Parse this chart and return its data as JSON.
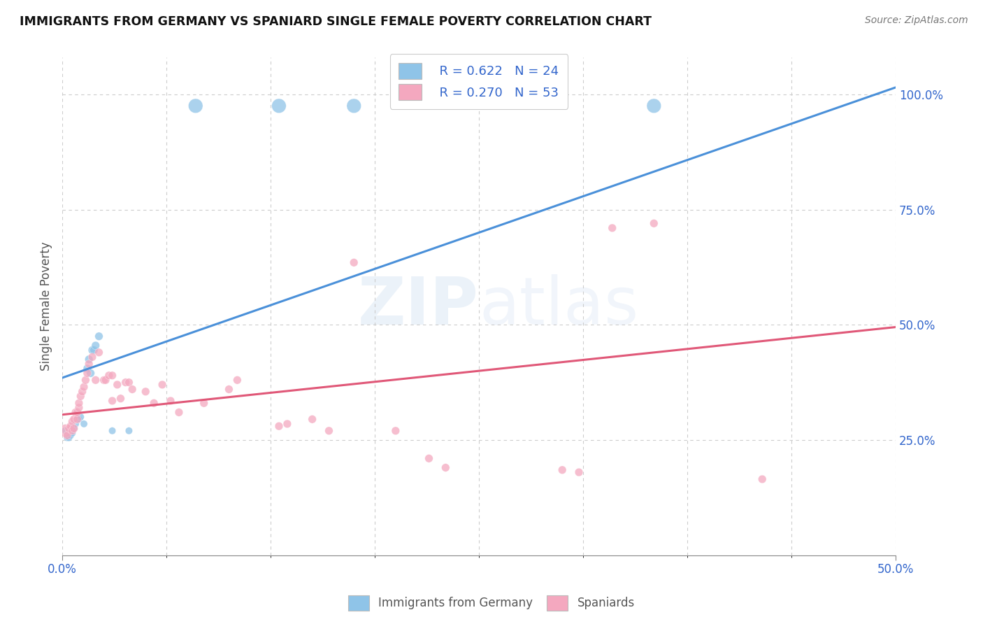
{
  "title": "IMMIGRANTS FROM GERMANY VS SPANIARD SINGLE FEMALE POVERTY CORRELATION CHART",
  "source": "Source: ZipAtlas.com",
  "ylabel": "Single Female Poverty",
  "xlim": [
    0.0,
    0.5
  ],
  "ylim": [
    0.0,
    1.08
  ],
  "ytick_labels": [
    "25.0%",
    "50.0%",
    "75.0%",
    "100.0%"
  ],
  "ytick_positions": [
    0.25,
    0.5,
    0.75,
    1.0
  ],
  "legend_r1": "R = 0.622",
  "legend_n1": "N = 24",
  "legend_r2": "R = 0.270",
  "legend_n2": "N = 53",
  "legend_label1": "Immigrants from Germany",
  "legend_label2": "Spaniards",
  "color_blue": "#8fc4e8",
  "color_pink": "#f4a8bf",
  "color_blue_line": "#4a90d9",
  "color_pink_line": "#e05878",
  "blue_line": [
    [
      0.0,
      0.385
    ],
    [
      0.5,
      1.015
    ]
  ],
  "pink_line": [
    [
      0.0,
      0.305
    ],
    [
      0.5,
      0.495
    ]
  ],
  "blue_points": [
    [
      0.002,
      0.27
    ],
    [
      0.003,
      0.255
    ],
    [
      0.004,
      0.255
    ],
    [
      0.005,
      0.26
    ],
    [
      0.006,
      0.265
    ],
    [
      0.007,
      0.275
    ],
    [
      0.008,
      0.285
    ],
    [
      0.009,
      0.295
    ],
    [
      0.01,
      0.295
    ],
    [
      0.011,
      0.3
    ],
    [
      0.013,
      0.285
    ],
    [
      0.015,
      0.405
    ],
    [
      0.016,
      0.425
    ],
    [
      0.017,
      0.395
    ],
    [
      0.018,
      0.445
    ],
    [
      0.019,
      0.445
    ],
    [
      0.02,
      0.455
    ],
    [
      0.022,
      0.475
    ],
    [
      0.03,
      0.27
    ],
    [
      0.04,
      0.27
    ],
    [
      0.08,
      0.975
    ],
    [
      0.13,
      0.975
    ],
    [
      0.175,
      0.975
    ],
    [
      0.355,
      0.975
    ]
  ],
  "pink_points": [
    [
      0.002,
      0.27
    ],
    [
      0.003,
      0.26
    ],
    [
      0.004,
      0.275
    ],
    [
      0.005,
      0.28
    ],
    [
      0.006,
      0.27
    ],
    [
      0.006,
      0.29
    ],
    [
      0.007,
      0.275
    ],
    [
      0.007,
      0.295
    ],
    [
      0.008,
      0.31
    ],
    [
      0.009,
      0.295
    ],
    [
      0.009,
      0.31
    ],
    [
      0.01,
      0.32
    ],
    [
      0.01,
      0.33
    ],
    [
      0.011,
      0.345
    ],
    [
      0.012,
      0.355
    ],
    [
      0.013,
      0.365
    ],
    [
      0.014,
      0.38
    ],
    [
      0.015,
      0.395
    ],
    [
      0.016,
      0.415
    ],
    [
      0.018,
      0.43
    ],
    [
      0.02,
      0.38
    ],
    [
      0.022,
      0.44
    ],
    [
      0.025,
      0.38
    ],
    [
      0.026,
      0.38
    ],
    [
      0.028,
      0.39
    ],
    [
      0.03,
      0.335
    ],
    [
      0.03,
      0.39
    ],
    [
      0.033,
      0.37
    ],
    [
      0.035,
      0.34
    ],
    [
      0.038,
      0.375
    ],
    [
      0.04,
      0.375
    ],
    [
      0.042,
      0.36
    ],
    [
      0.05,
      0.355
    ],
    [
      0.055,
      0.33
    ],
    [
      0.06,
      0.37
    ],
    [
      0.065,
      0.335
    ],
    [
      0.07,
      0.31
    ],
    [
      0.085,
      0.33
    ],
    [
      0.1,
      0.36
    ],
    [
      0.105,
      0.38
    ],
    [
      0.13,
      0.28
    ],
    [
      0.135,
      0.285
    ],
    [
      0.15,
      0.295
    ],
    [
      0.16,
      0.27
    ],
    [
      0.175,
      0.635
    ],
    [
      0.2,
      0.27
    ],
    [
      0.22,
      0.21
    ],
    [
      0.23,
      0.19
    ],
    [
      0.3,
      0.185
    ],
    [
      0.31,
      0.18
    ],
    [
      0.33,
      0.71
    ],
    [
      0.355,
      0.72
    ],
    [
      0.42,
      0.165
    ]
  ],
  "blue_sizes": [
    60,
    55,
    55,
    55,
    55,
    55,
    55,
    55,
    55,
    55,
    55,
    70,
    70,
    70,
    70,
    70,
    70,
    70,
    55,
    55,
    220,
    220,
    220,
    220
  ],
  "pink_sizes": [
    180,
    70,
    70,
    70,
    70,
    70,
    70,
    70,
    70,
    70,
    70,
    70,
    70,
    70,
    70,
    70,
    70,
    70,
    70,
    70,
    70,
    70,
    70,
    70,
    70,
    70,
    70,
    70,
    70,
    70,
    70,
    70,
    70,
    70,
    70,
    70,
    70,
    70,
    70,
    70,
    70,
    70,
    70,
    70,
    70,
    70,
    70,
    70,
    70,
    70,
    70,
    70,
    70
  ]
}
